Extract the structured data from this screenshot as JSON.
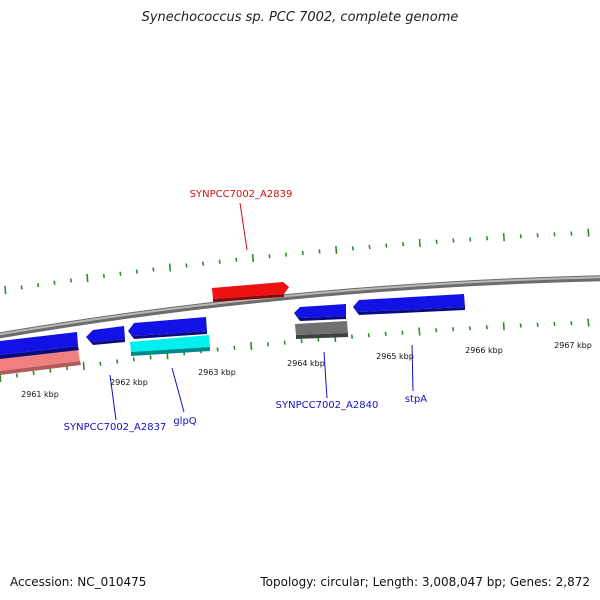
{
  "title": "Synechococcus sp. PCC 7002, complete genome",
  "footer": {
    "accession": "Accession: NC_010475",
    "summary": "Topology: circular; Length: 3,008,047 bp; Genes: 2,872"
  },
  "colors": {
    "backbone": "#808080",
    "tick": "#2e8b2e",
    "gene_blue": "#1010e0",
    "gene_red": "#ee1111",
    "gene_pink": "#f08080",
    "gene_cyan": "#00f0f0",
    "gene_gray": "#707070",
    "label_blue": "#1010c0",
    "label_red": "#d01010"
  },
  "scale": {
    "tick_labels": [
      "2961 kbp",
      "2962 kbp",
      "2963 kbp",
      "2964 kbp",
      "2965 kbp",
      "2966 kbp",
      "2967 kbp"
    ]
  },
  "genes": [
    {
      "id": "g-pink",
      "strand": "minus",
      "color": "gene_pink",
      "label": ""
    },
    {
      "id": "g-blue-left",
      "strand": "plus",
      "color": "gene_blue",
      "label": ""
    },
    {
      "id": "g-A2837",
      "strand": "plus",
      "color": "gene_blue",
      "label": "SYNPCC7002_A2837"
    },
    {
      "id": "g-glpQ-blue",
      "strand": "plus",
      "color": "gene_blue",
      "label": ""
    },
    {
      "id": "g-glpQ",
      "strand": "minus",
      "color": "gene_cyan",
      "label": "glpQ"
    },
    {
      "id": "g-A2839",
      "strand": "plus",
      "color": "gene_red",
      "label": "SYNPCC7002_A2839"
    },
    {
      "id": "g-A2840-blue",
      "strand": "plus",
      "color": "gene_blue",
      "label": ""
    },
    {
      "id": "g-A2840",
      "strand": "minus",
      "color": "gene_gray",
      "label": "SYNPCC7002_A2840"
    },
    {
      "id": "g-stpA",
      "strand": "plus",
      "color": "gene_blue",
      "label": "stpA"
    }
  ]
}
